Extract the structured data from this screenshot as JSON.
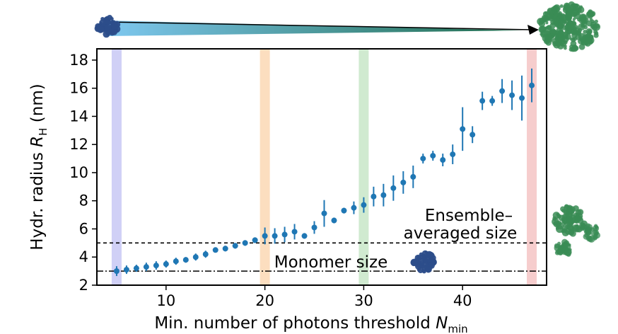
{
  "chart_data": {
    "type": "scatter",
    "xlabel": "Min. number of photons threshold",
    "xlabel_symbol": "N",
    "xlabel_subscript": "min",
    "ylabel": "Hydr. radius",
    "ylabel_symbol": "R",
    "ylabel_subscript": "H",
    "ylabel_unit": "(nm)",
    "xlim": [
      3,
      48.5
    ],
    "ylim": [
      2,
      18.8
    ],
    "x_ticks": [
      10,
      20,
      30,
      40
    ],
    "y_ticks": [
      2,
      4,
      6,
      8,
      10,
      12,
      14,
      16,
      18
    ],
    "grid": false,
    "marker_color": "#1f77b4",
    "series": [
      {
        "x": [
          5,
          6,
          7,
          8,
          9,
          10,
          11,
          12,
          13,
          14,
          15,
          16,
          17,
          18,
          19,
          20,
          21,
          22,
          23,
          24,
          25,
          26,
          27,
          28,
          29,
          30,
          31,
          32,
          33,
          34,
          35,
          36,
          37,
          38,
          39,
          40,
          41,
          42,
          43,
          44,
          45,
          46,
          47
        ],
        "y": [
          3.0,
          3.1,
          3.2,
          3.3,
          3.4,
          3.5,
          3.7,
          3.8,
          4.0,
          4.2,
          4.5,
          4.6,
          4.8,
          5.0,
          5.2,
          5.5,
          5.5,
          5.6,
          5.8,
          5.5,
          6.1,
          7.1,
          6.6,
          7.3,
          7.5,
          7.7,
          8.3,
          8.4,
          8.9,
          9.3,
          9.7,
          11.0,
          11.2,
          10.9,
          11.3,
          13.1,
          12.7,
          15.1,
          15.1,
          15.8,
          15.5,
          15.3,
          16.2
        ],
        "err": [
          0.35,
          0.3,
          0.25,
          0.3,
          0.3,
          0.25,
          0.25,
          0.2,
          0.25,
          0.25,
          0.15,
          0.2,
          0.2,
          0.2,
          0.2,
          0.6,
          0.55,
          0.55,
          0.55,
          0.2,
          0.45,
          0.95,
          0.2,
          0.2,
          0.45,
          0.55,
          0.7,
          0.8,
          0.9,
          0.8,
          0.8,
          0.35,
          0.35,
          0.45,
          0.7,
          1.55,
          0.6,
          0.65,
          0.35,
          0.85,
          1.05,
          1.6,
          1.2
        ]
      }
    ],
    "highlight_bands": [
      {
        "x": 5,
        "color": "#c8c8f5"
      },
      {
        "x": 20,
        "color": "#fcd8b4"
      },
      {
        "x": 30,
        "color": "#c8e6c8"
      },
      {
        "x": 47,
        "color": "#f5c4c4"
      }
    ],
    "reference_lines": [
      {
        "y": 5.0,
        "style": "dashed",
        "label_line1": "Ensemble–",
        "label_line2": "averaged size"
      },
      {
        "y": 3.0,
        "style": "dashdot",
        "label_line1": "Monomer size",
        "label_line2": ""
      }
    ],
    "top_arrow": {
      "gradient_start": "#7ec8f0",
      "gradient_end": "#1e6b4a",
      "arrow_color": "#000000"
    },
    "decorations": {
      "monomer_color": "#2c4d8a",
      "aggregate_color": "#3a8c55"
    }
  }
}
